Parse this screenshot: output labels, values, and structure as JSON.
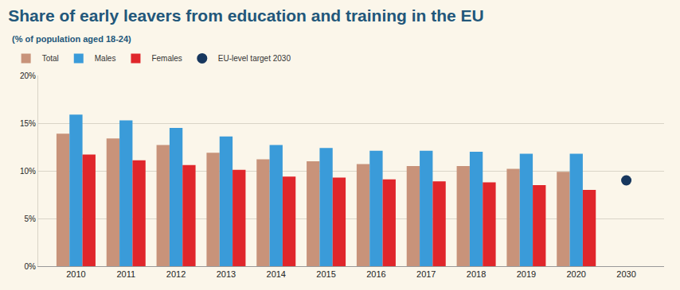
{
  "chart_data": {
    "type": "bar",
    "title": "Share of early leavers from education and training in the EU",
    "subtitle": "(% of population aged 18-24)",
    "categories": [
      "2010",
      "2011",
      "2012",
      "2013",
      "2014",
      "2015",
      "2016",
      "2017",
      "2018",
      "2019",
      "2020",
      "2030"
    ],
    "series": [
      {
        "name": "Total",
        "type": "bar",
        "color": "#c8937a",
        "values": [
          13.9,
          13.4,
          12.7,
          11.9,
          11.2,
          11.0,
          10.7,
          10.5,
          10.5,
          10.2,
          9.9,
          null
        ]
      },
      {
        "name": "Males",
        "type": "bar",
        "color": "#3a9bd9",
        "values": [
          15.9,
          15.3,
          14.5,
          13.6,
          12.7,
          12.4,
          12.1,
          12.1,
          12.0,
          11.8,
          11.8,
          null
        ]
      },
      {
        "name": "Females",
        "type": "bar",
        "color": "#e0262b",
        "values": [
          11.7,
          11.1,
          10.6,
          10.1,
          9.4,
          9.3,
          9.1,
          8.9,
          8.8,
          8.5,
          8.0,
          null
        ]
      },
      {
        "name": "EU-level target 2030",
        "type": "scatter",
        "marker": "circle",
        "color": "#17375e",
        "values": [
          null,
          null,
          null,
          null,
          null,
          null,
          null,
          null,
          null,
          null,
          null,
          9
        ]
      }
    ],
    "ylim": [
      0,
      20
    ],
    "yticks": [
      {
        "value": 0,
        "label": "0%"
      },
      {
        "value": 5,
        "label": "5%"
      },
      {
        "value": 10,
        "label": "10%"
      },
      {
        "value": 15,
        "label": "15%"
      },
      {
        "value": 20,
        "label": "20%"
      }
    ],
    "grid": true,
    "legend": "top-left",
    "data_labels": false
  }
}
